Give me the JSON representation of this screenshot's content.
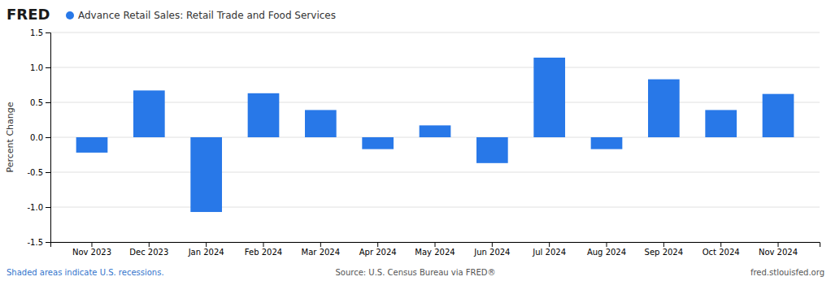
{
  "chart_data": {
    "type": "bar",
    "title": "Advance Retail Sales: Retail Trade and Food Services",
    "categories": [
      "Nov 2023",
      "Dec 2023",
      "Jan 2024",
      "Feb 2024",
      "Mar 2024",
      "Apr 2024",
      "May 2024",
      "Jun 2024",
      "Jul 2024",
      "Aug 2024",
      "Sep 2024",
      "Oct 2024",
      "Nov 2024"
    ],
    "values": [
      -0.22,
      0.67,
      -1.07,
      0.63,
      0.39,
      -0.17,
      0.17,
      -0.37,
      1.14,
      -0.17,
      0.83,
      0.39,
      0.62
    ],
    "color": "#2878E8",
    "ylim": [
      -1.5,
      1.5
    ],
    "yticks": [
      -1.5,
      {
        "value": -1.0,
        "label": "-1.0"
      },
      -0.5,
      {
        "value": 0.0,
        "label": "0.0"
      },
      0.5,
      {
        "value": 1.0,
        "label": "1.0"
      },
      1.5
    ],
    "ylabel": "Percent Change",
    "grid": true,
    "annotations": [
      "FRED",
      "Shaded areas indicate U.S. recessions.",
      "Source: U.S. Census Bureau via FRED®",
      "fred.stlouisfed.org"
    ]
  }
}
